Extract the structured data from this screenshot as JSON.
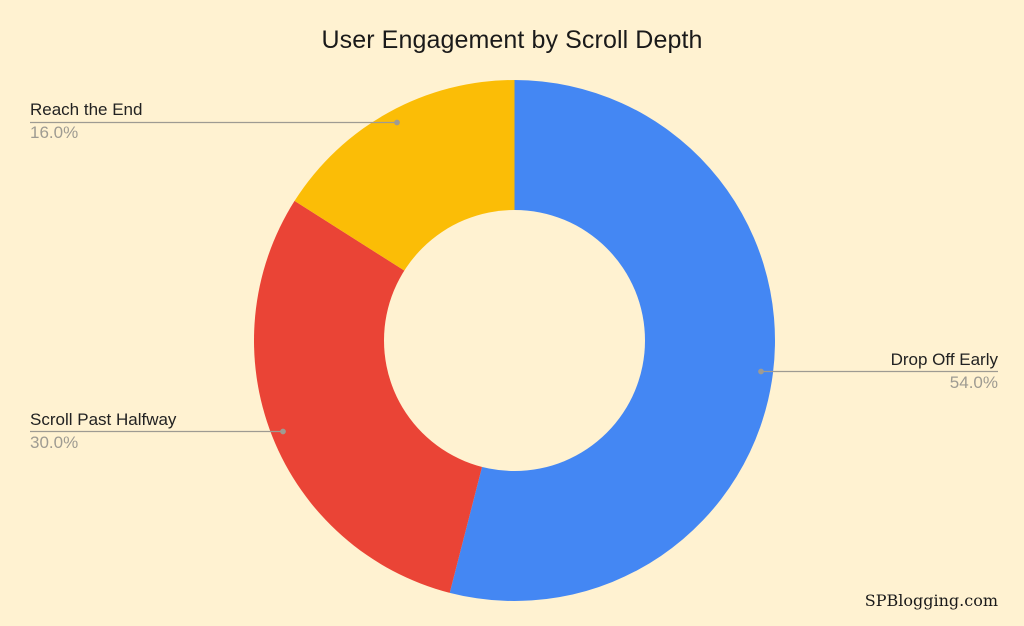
{
  "chart_data": {
    "type": "pie",
    "subtype": "donut",
    "title": "User Engagement by Scroll Depth",
    "categories": [
      "Drop Off Early",
      "Scroll Past Halfway",
      "Reach the End"
    ],
    "values": [
      54.0,
      30.0,
      16.0
    ],
    "value_labels": [
      "54.0%",
      "30.0%",
      "16.0%"
    ],
    "colors": [
      "#4487f3",
      "#ea4436",
      "#fbbd06"
    ],
    "legend": "none (leader-line labels)",
    "start_angle_deg": 0,
    "direction": "clockwise",
    "hole_ratio": 0.5
  },
  "labels": {
    "reach_end": {
      "name": "Reach the End",
      "pct": "16.0%"
    },
    "scroll_half": {
      "name": "Scroll Past Halfway",
      "pct": "30.0%"
    },
    "drop_off": {
      "name": "Drop Off Early",
      "pct": "54.0%"
    }
  },
  "style": {
    "background": "#fff2d1",
    "leader_line_color": "#9e9b92"
  },
  "watermark": "SPBlogging.com"
}
